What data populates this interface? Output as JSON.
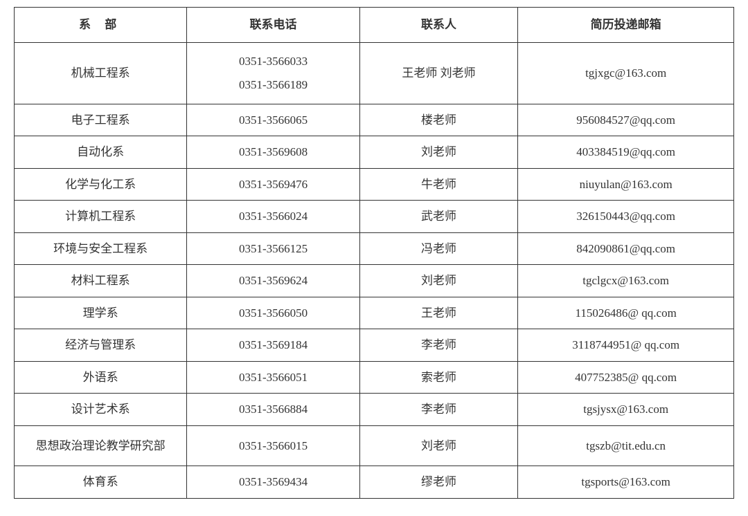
{
  "table": {
    "headers": {
      "department": "系 部",
      "phone": "联系电话",
      "contact": "联系人",
      "email": "简历投递邮箱"
    },
    "rows": [
      {
        "department": "机械工程系",
        "phone1": "0351-3566033",
        "phone2": "0351-3566189",
        "contact": "王老师 刘老师",
        "email": "tgjxgc@163.com",
        "multiPhone": true
      },
      {
        "department": "电子工程系",
        "phone1": "0351-3566065",
        "contact": "楼老师",
        "email": "956084527@qq.com"
      },
      {
        "department": "自动化系",
        "phone1": "0351-3569608",
        "contact": "刘老师",
        "email": "403384519@qq.com"
      },
      {
        "department": "化学与化工系",
        "phone1": "0351-3569476",
        "contact": "牛老师",
        "email": "niuyulan@163.com"
      },
      {
        "department": "计算机工程系",
        "phone1": "0351-3566024",
        "contact": "武老师",
        "email": "326150443@qq.com"
      },
      {
        "department": "环境与安全工程系",
        "phone1": "0351-3566125",
        "contact": "冯老师",
        "email": "842090861@qq.com"
      },
      {
        "department": "材料工程系",
        "phone1": "0351-3569624",
        "contact": "刘老师",
        "email": "tgclgcx@163.com"
      },
      {
        "department": "理学系",
        "phone1": "0351-3566050",
        "contact": "王老师",
        "email": "115026486@ qq.com"
      },
      {
        "department": "经济与管理系",
        "phone1": "0351-3569184",
        "contact": "李老师",
        "email": "3118744951@ qq.com"
      },
      {
        "department": "外语系",
        "phone1": "0351-3566051",
        "contact": "索老师",
        "email": "407752385@ qq.com"
      },
      {
        "department": "设计艺术系",
        "phone1": "0351-3566884",
        "contact": "李老师",
        "email": "tgsjysx@163.com"
      },
      {
        "department": "思想政治理论教学研究部",
        "phone1": "0351-3566015",
        "contact": "刘老师",
        "email": "tgszb@tit.edu.cn",
        "tall": true
      },
      {
        "department": "体育系",
        "phone1": "0351-3569434",
        "contact": "缪老师",
        "email": "tgsports@163.com"
      }
    ],
    "styling": {
      "border_color": "#333333",
      "text_color": "#333333",
      "background_color": "#ffffff",
      "font_family": "SimSun",
      "font_size": 17,
      "header_font_weight": "bold",
      "col_widths": [
        "24%",
        "24%",
        "22%",
        "30%"
      ]
    }
  }
}
